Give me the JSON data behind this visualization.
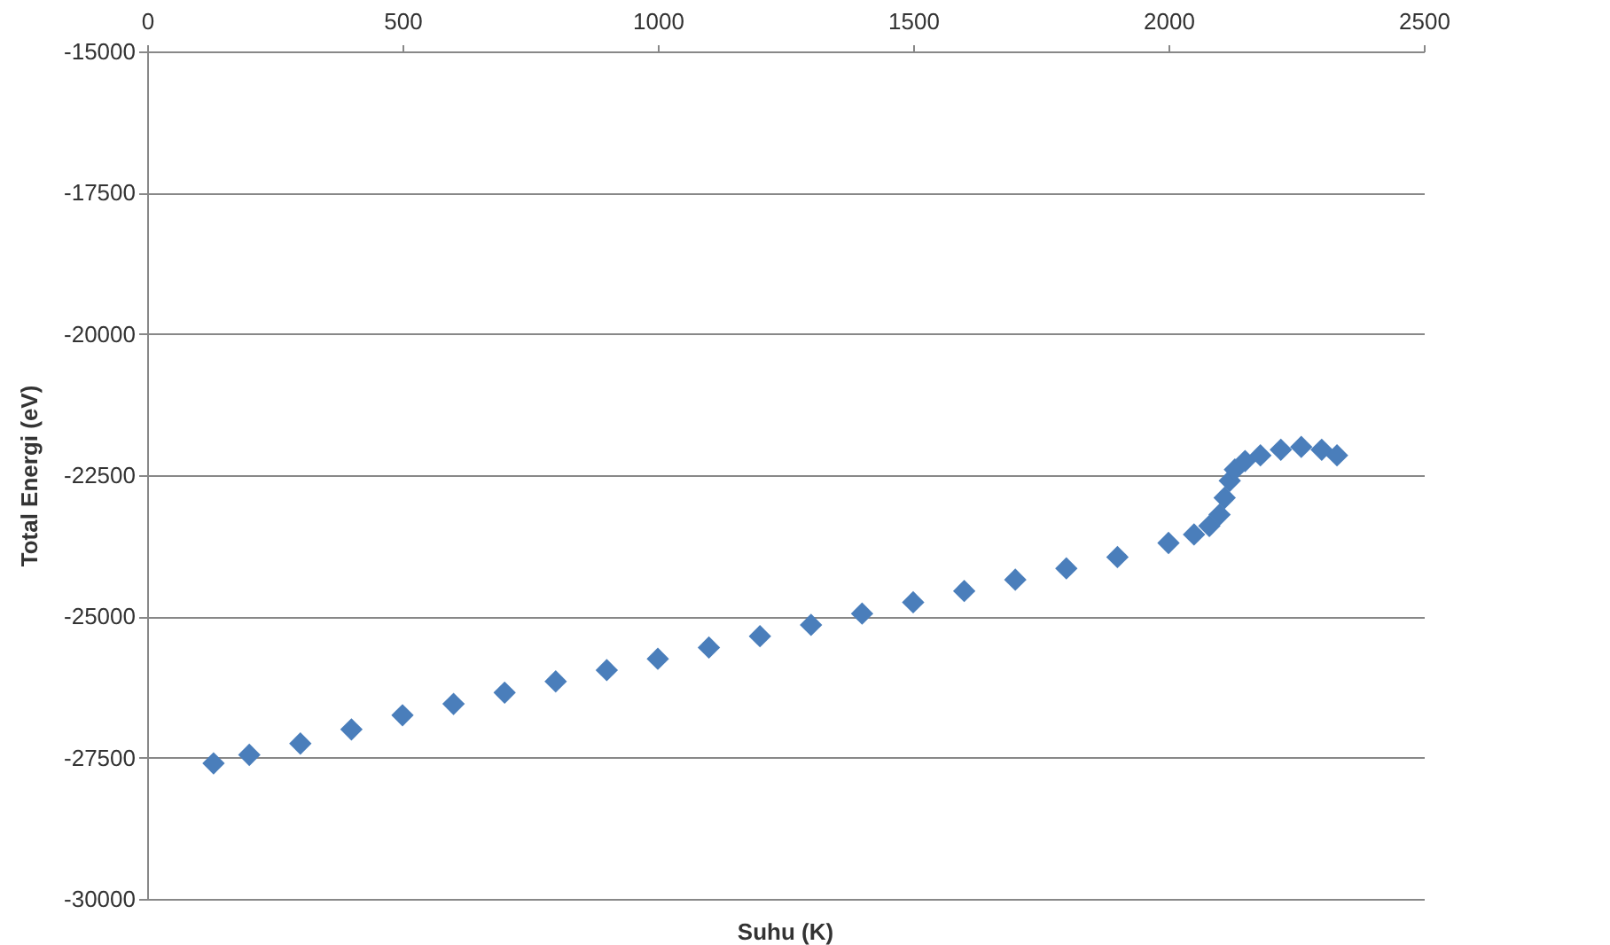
{
  "chart_data": {
    "type": "scatter",
    "xlabel": "Suhu (K)",
    "ylabel": "Total Energi (eV)",
    "x": [
      130,
      200,
      300,
      400,
      500,
      600,
      700,
      800,
      900,
      1000,
      1100,
      1200,
      1300,
      1400,
      1500,
      1600,
      1700,
      1800,
      1900,
      2000,
      2050,
      2080,
      2100,
      2110,
      2120,
      2130,
      2150,
      2180,
      2220,
      2260,
      2300,
      2330
    ],
    "series": [
      {
        "color": "#4a7ebb",
        "values": [
          -27600,
          -27450,
          -27250,
          -27000,
          -26750,
          -26550,
          -26350,
          -26150,
          -25950,
          -25750,
          -25550,
          -25350,
          -25150,
          -24950,
          -24750,
          -24550,
          -24350,
          -24150,
          -23950,
          -23700,
          -23550,
          -23400,
          -23200,
          -22900,
          -22600,
          -22400,
          -22250,
          -22150,
          -22050,
          -22000,
          -22050,
          -22150
        ]
      }
    ],
    "xlim": [
      0,
      2500
    ],
    "xticks": [
      0,
      500,
      1000,
      1500,
      2000,
      2500
    ],
    "ylim": [
      -30000,
      -15000
    ],
    "yticks": [
      -30000,
      -27500,
      -25000,
      -22500,
      -20000,
      -17500,
      -15000
    ],
    "grid": "y",
    "marker": "diamond"
  }
}
